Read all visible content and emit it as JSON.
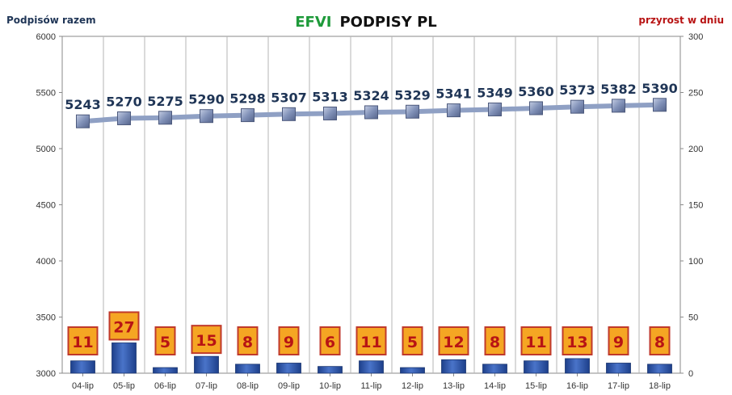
{
  "chart_data": {
    "type": "bar",
    "title_part1": "EFVI",
    "title_part2": "PODPISY PL",
    "ylabel_left": "Podpisów razem",
    "ylabel_right": "przyrost w dniu",
    "categories": [
      "04-lip",
      "05-lip",
      "06-lip",
      "07-lip",
      "08-lip",
      "09-lip",
      "10-lip",
      "11-lip",
      "12-lip",
      "13-lip",
      "14-lip",
      "15-lip",
      "16-lip",
      "17-lip",
      "18-lip"
    ],
    "ylim_left": [
      3000,
      6000
    ],
    "yticks_left": [
      3000,
      3500,
      4000,
      4500,
      5000,
      5500,
      6000
    ],
    "ylim_right": [
      0,
      300
    ],
    "yticks_right": [
      0,
      50,
      100,
      150,
      200,
      250,
      300
    ],
    "grid": "vertical",
    "legend": "none",
    "series": [
      {
        "type": "line",
        "axis": "left",
        "values": [
          5243,
          5270,
          5275,
          5290,
          5298,
          5307,
          5313,
          5324,
          5329,
          5341,
          5349,
          5360,
          5373,
          5382,
          5390
        ],
        "labels": [
          "5243",
          "5270",
          "5275",
          "5290",
          "5298",
          "5307",
          "5313",
          "5324",
          "5329",
          "5341",
          "5349",
          "5360",
          "5373",
          "5382",
          "5390"
        ],
        "color": "#8fa0c4",
        "marker_color": "#7f8fb5"
      },
      {
        "type": "bar",
        "axis": "right",
        "values": [
          11,
          27,
          5,
          15,
          8,
          9,
          6,
          11,
          5,
          12,
          8,
          11,
          13,
          9,
          8
        ],
        "labels": [
          "11",
          "27",
          "5",
          "15",
          "8",
          "9",
          "6",
          "11",
          "5",
          "12",
          "8",
          "11",
          "13",
          "9",
          "8"
        ],
        "color": "#2e54a8",
        "label_box_color": "#f5a623",
        "label_border_color": "#c0392b",
        "label_text_color": "#b81414"
      }
    ]
  }
}
